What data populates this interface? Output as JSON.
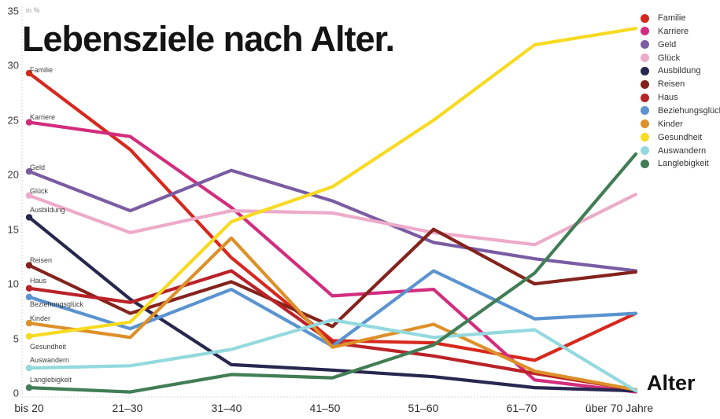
{
  "chart_data": {
    "type": "line",
    "title": "Lebensziele nach Alter.",
    "xlabel": "Alter",
    "ylabel": "in %",
    "ylim": [
      0,
      35
    ],
    "grid": false,
    "legend_position": "top-right",
    "y_ticks": [
      "35",
      "30",
      "25",
      "20",
      "15",
      "10",
      "5",
      "0"
    ],
    "categories": [
      "bis 20",
      "21–30",
      "31–40",
      "41–50",
      "51–60",
      "61–70",
      "über 70 Jahre"
    ],
    "series": [
      {
        "name": "Familie",
        "color": "#d7281d",
        "values": [
          29.3,
          22.3,
          12.4,
          4.8,
          4.6,
          3.0,
          7.3
        ]
      },
      {
        "name": "Karriere",
        "color": "#d22d7e",
        "values": [
          24.8,
          23.5,
          17.0,
          8.9,
          9.5,
          1.2,
          0.1
        ]
      },
      {
        "name": "Geld",
        "color": "#7a5ca3",
        "values": [
          20.3,
          16.7,
          20.4,
          17.6,
          13.8,
          12.3,
          11.2
        ]
      },
      {
        "name": "Glück",
        "color": "#edaac9",
        "values": [
          18.1,
          14.7,
          16.7,
          16.5,
          14.7,
          13.6,
          18.2
        ]
      },
      {
        "name": "Ausbildung",
        "color": "#27274f",
        "values": [
          16.1,
          8.6,
          2.6,
          2.1,
          1.5,
          0.5,
          0.2
        ]
      },
      {
        "name": "Reisen",
        "color": "#84231d",
        "values": [
          11.7,
          7.3,
          10.2,
          6.1,
          15.0,
          10.0,
          11.1
        ]
      },
      {
        "name": "Haus",
        "color": "#b92227",
        "values": [
          9.6,
          8.3,
          11.2,
          4.6,
          3.4,
          1.8,
          0.3
        ]
      },
      {
        "name": "Beziehungsglück",
        "color": "#5a93d0",
        "values": [
          8.8,
          5.9,
          9.5,
          4.3,
          11.2,
          6.8,
          7.3
        ]
      },
      {
        "name": "Kinder",
        "color": "#dd9029",
        "values": [
          6.4,
          5.1,
          14.2,
          4.2,
          6.3,
          2.0,
          0.3
        ]
      },
      {
        "name": "Gesundheit",
        "color": "#f7da21",
        "values": [
          5.2,
          6.5,
          15.7,
          18.9,
          25.0,
          31.9,
          33.4
        ]
      },
      {
        "name": "Auswandern",
        "color": "#93d9de",
        "values": [
          2.3,
          2.5,
          4.0,
          6.7,
          5.1,
          5.8,
          0.2
        ]
      },
      {
        "name": "Langlebigkeit",
        "color": "#417d55",
        "values": [
          0.5,
          0.1,
          1.7,
          1.4,
          4.4,
          11.0,
          21.9
        ]
      }
    ]
  }
}
